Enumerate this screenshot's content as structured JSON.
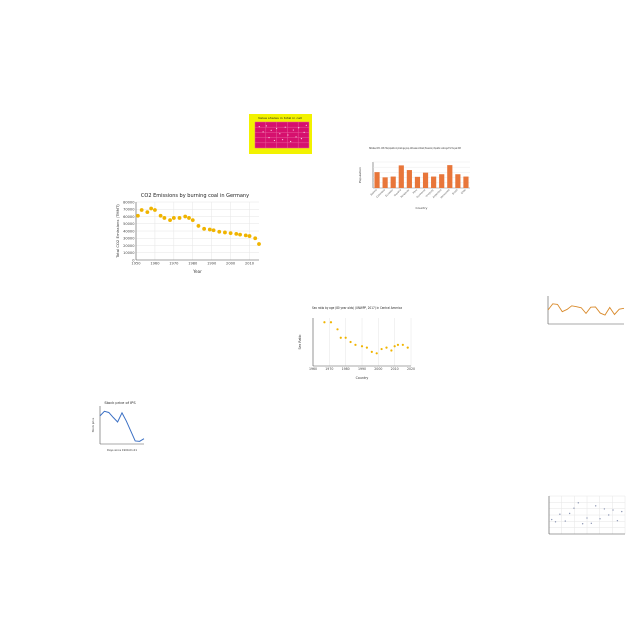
{
  "colors": {
    "page_bg": "#ffffff",
    "gold_marker": "#f0b400",
    "orange_bar": "#e8763a",
    "blue_line": "#3a6fc4",
    "orange_line": "#d98a2b",
    "grey_point": "#7a86a8",
    "magenta_bg": "#d6106e",
    "yellow_bg": "#f2f200",
    "grid": "#e6e6e6",
    "axis": "#555555"
  },
  "chart_data": [
    {
      "id": "germany",
      "type": "scatter",
      "title": "CO2 Emissions by burning coal in Germany",
      "xlabel": "Year",
      "ylabel": "Total CO2 Emissions (TMMT)",
      "xlim": [
        1950,
        2015
      ],
      "ylim": [
        0,
        80000
      ],
      "xticks": [
        1950,
        1960,
        1970,
        1980,
        1990,
        2000,
        2010
      ],
      "yticks": [
        0,
        10000,
        20000,
        30000,
        40000,
        50000,
        60000,
        70000,
        80000
      ],
      "grid": true,
      "points": [
        {
          "x": 1951,
          "y": 61000
        },
        {
          "x": 1953,
          "y": 69000
        },
        {
          "x": 1956,
          "y": 66000
        },
        {
          "x": 1958,
          "y": 71000
        },
        {
          "x": 1960,
          "y": 69000
        },
        {
          "x": 1963,
          "y": 61000
        },
        {
          "x": 1965,
          "y": 58000
        },
        {
          "x": 1968,
          "y": 55000
        },
        {
          "x": 1970,
          "y": 58000
        },
        {
          "x": 1973,
          "y": 58000
        },
        {
          "x": 1976,
          "y": 60000
        },
        {
          "x": 1978,
          "y": 58000
        },
        {
          "x": 1980,
          "y": 55000
        },
        {
          "x": 1983,
          "y": 47000
        },
        {
          "x": 1986,
          "y": 43000
        },
        {
          "x": 1989,
          "y": 42000
        },
        {
          "x": 1991,
          "y": 41000
        },
        {
          "x": 1994,
          "y": 39000
        },
        {
          "x": 1997,
          "y": 38000
        },
        {
          "x": 2000,
          "y": 37000
        },
        {
          "x": 2003,
          "y": 36000
        },
        {
          "x": 2005,
          "y": 35000
        },
        {
          "x": 2008,
          "y": 34000
        },
        {
          "x": 2010,
          "y": 33000
        },
        {
          "x": 2013,
          "y": 30000
        },
        {
          "x": 2015,
          "y": 22000
        }
      ]
    },
    {
      "id": "bars",
      "type": "bar",
      "title": "Estimates, 1950 - 2015: Total population by broad age group, both sexes combined (thousands) - Population under age 5 for the year 2015",
      "xlabel": "Country",
      "ylabel": "Population",
      "categories": [
        "Bolivia",
        "Colombia",
        "Ecuador",
        "Guyana",
        "Paraguay",
        "Peru",
        "Suriname",
        "Uruguay",
        "Argentina",
        "Venezuela",
        "Brazil",
        "Chile"
      ],
      "values": [
        6100,
        4100,
        4400,
        8700,
        6900,
        4300,
        5900,
        4400,
        5300,
        8800,
        5300,
        4400
      ],
      "ylim": [
        0,
        10000
      ],
      "grid": true
    },
    {
      "id": "sexratio",
      "type": "scatter",
      "title": "Sex ratio by age (80 year olds) (UNWPP, 2017) in Central America",
      "xlabel": "Country",
      "ylabel": "Sex Ratio",
      "xlim": [
        1960,
        2020
      ],
      "ylim": [
        68,
        102
      ],
      "xticks": [
        1960,
        1970,
        1980,
        1990,
        2000,
        2010,
        2020
      ],
      "grid": true,
      "points": [
        {
          "x": 1967,
          "y": 99
        },
        {
          "x": 1971,
          "y": 99
        },
        {
          "x": 1975,
          "y": 94
        },
        {
          "x": 1977,
          "y": 88
        },
        {
          "x": 1980,
          "y": 88
        },
        {
          "x": 1983,
          "y": 85
        },
        {
          "x": 1986,
          "y": 83
        },
        {
          "x": 1990,
          "y": 82
        },
        {
          "x": 1993,
          "y": 81
        },
        {
          "x": 1996,
          "y": 78
        },
        {
          "x": 1999,
          "y": 77
        },
        {
          "x": 2002,
          "y": 80
        },
        {
          "x": 2005,
          "y": 81
        },
        {
          "x": 2008,
          "y": 79
        },
        {
          "x": 2010,
          "y": 82
        },
        {
          "x": 2012,
          "y": 83
        },
        {
          "x": 2015,
          "y": 83
        },
        {
          "x": 2018,
          "y": 81
        }
      ]
    },
    {
      "id": "magenta",
      "type": "scatter",
      "title": "Value shares in total in cell",
      "xlim": [
        0,
        10
      ],
      "ylim": [
        0,
        10
      ],
      "grid": true,
      "points": [
        {
          "x": 0.8,
          "y": 8.2
        },
        {
          "x": 1.5,
          "y": 6.2
        },
        {
          "x": 2.1,
          "y": 8.5
        },
        {
          "x": 2.6,
          "y": 4.0
        },
        {
          "x": 3.0,
          "y": 6.8
        },
        {
          "x": 3.6,
          "y": 2.9
        },
        {
          "x": 4.0,
          "y": 7.5
        },
        {
          "x": 4.6,
          "y": 5.5
        },
        {
          "x": 5.1,
          "y": 3.2
        },
        {
          "x": 5.6,
          "y": 8.0
        },
        {
          "x": 6.1,
          "y": 5.0
        },
        {
          "x": 6.6,
          "y": 2.5
        },
        {
          "x": 7.1,
          "y": 6.9
        },
        {
          "x": 7.6,
          "y": 4.3
        },
        {
          "x": 8.1,
          "y": 7.8
        },
        {
          "x": 8.6,
          "y": 3.6
        },
        {
          "x": 9.1,
          "y": 6.0
        },
        {
          "x": 9.5,
          "y": 8.7
        }
      ]
    },
    {
      "id": "small_line",
      "type": "line",
      "title": "Stock price of IPS",
      "xlabel": "Days since 1900-01-01",
      "ylabel": "Stock price",
      "xlim": [
        0,
        10
      ],
      "ylim": [
        0,
        10
      ],
      "points": [
        {
          "x": 0,
          "y": 7.4
        },
        {
          "x": 1,
          "y": 8.6
        },
        {
          "x": 2,
          "y": 8.3
        },
        {
          "x": 3,
          "y": 7.0
        },
        {
          "x": 4,
          "y": 5.8
        },
        {
          "x": 5,
          "y": 8.2
        },
        {
          "x": 6,
          "y": 6.0
        },
        {
          "x": 7,
          "y": 3.4
        },
        {
          "x": 8,
          "y": 0.8
        },
        {
          "x": 9,
          "y": 0.7
        },
        {
          "x": 10,
          "y": 1.4
        }
      ]
    },
    {
      "id": "orange_line",
      "type": "line",
      "title": "",
      "xlim": [
        0,
        16
      ],
      "ylim": [
        0,
        10
      ],
      "points": [
        {
          "x": 0,
          "y": 5.0
        },
        {
          "x": 1,
          "y": 7.2
        },
        {
          "x": 2,
          "y": 7.0
        },
        {
          "x": 3,
          "y": 4.4
        },
        {
          "x": 4,
          "y": 5.2
        },
        {
          "x": 5,
          "y": 6.5
        },
        {
          "x": 6,
          "y": 6.2
        },
        {
          "x": 7,
          "y": 5.8
        },
        {
          "x": 8,
          "y": 3.8
        },
        {
          "x": 9,
          "y": 6.0
        },
        {
          "x": 10,
          "y": 6.1
        },
        {
          "x": 11,
          "y": 3.9
        },
        {
          "x": 12,
          "y": 3.2
        },
        {
          "x": 13,
          "y": 5.9
        },
        {
          "x": 14,
          "y": 3.4
        },
        {
          "x": 15,
          "y": 5.3
        },
        {
          "x": 16,
          "y": 5.6
        }
      ]
    },
    {
      "id": "grey_scatter",
      "type": "scatter",
      "title": "",
      "xlim": [
        0,
        14
      ],
      "ylim": [
        0,
        10
      ],
      "grid": true,
      "points": [
        {
          "x": 0.5,
          "y": 3.8
        },
        {
          "x": 1.2,
          "y": 3.2
        },
        {
          "x": 2.0,
          "y": 5.2
        },
        {
          "x": 3.0,
          "y": 3.4
        },
        {
          "x": 3.8,
          "y": 5.4
        },
        {
          "x": 4.6,
          "y": 6.8
        },
        {
          "x": 5.4,
          "y": 8.2
        },
        {
          "x": 6.2,
          "y": 2.7
        },
        {
          "x": 7.0,
          "y": 4.2
        },
        {
          "x": 7.8,
          "y": 2.8
        },
        {
          "x": 8.6,
          "y": 7.4
        },
        {
          "x": 9.4,
          "y": 4.0
        },
        {
          "x": 10.2,
          "y": 6.6
        },
        {
          "x": 11.0,
          "y": 5.0
        },
        {
          "x": 11.8,
          "y": 6.3
        },
        {
          "x": 12.6,
          "y": 3.5
        },
        {
          "x": 13.4,
          "y": 5.9
        }
      ]
    }
  ]
}
